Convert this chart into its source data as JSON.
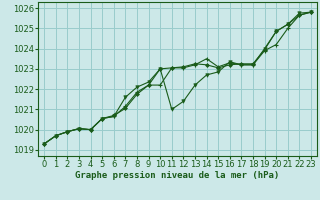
{
  "title": "Graphe pression niveau de la mer (hPa)",
  "xlabel_ticks": [
    0,
    1,
    2,
    3,
    4,
    5,
    6,
    7,
    8,
    9,
    10,
    11,
    12,
    13,
    14,
    15,
    16,
    17,
    18,
    19,
    20,
    21,
    22,
    23
  ],
  "ylim": [
    1018.7,
    1026.3
  ],
  "xlim": [
    -0.5,
    23.5
  ],
  "yticks": [
    1019,
    1020,
    1021,
    1022,
    1023,
    1024,
    1025,
    1026
  ],
  "bg_color": "#cce8e8",
  "grid_color": "#99cccc",
  "line_color": "#1a5c1a",
  "marker_color": "#1a5c1a",
  "series1": [
    1019.3,
    1019.7,
    1019.9,
    1020.05,
    1020.0,
    1020.55,
    1020.7,
    1021.05,
    1021.75,
    1022.2,
    1023.0,
    1023.05,
    1023.1,
    1023.25,
    1023.2,
    1023.05,
    1023.2,
    1023.25,
    1023.25,
    1023.95,
    1024.85,
    1025.2,
    1025.65,
    1025.8
  ],
  "series2": [
    1019.3,
    1019.7,
    1019.9,
    1020.05,
    1020.0,
    1020.55,
    1020.65,
    1021.15,
    1021.85,
    1022.2,
    1022.2,
    1023.05,
    1023.05,
    1023.2,
    1023.5,
    1023.1,
    1023.3,
    1023.2,
    1023.2,
    1023.9,
    1024.2,
    1025.0,
    1025.65,
    1025.8
  ],
  "series3": [
    1019.3,
    1019.7,
    1019.9,
    1020.05,
    1020.0,
    1020.55,
    1020.65,
    1021.6,
    1022.1,
    1022.35,
    1023.0,
    1021.0,
    1021.4,
    1022.2,
    1022.7,
    1022.85,
    1023.35,
    1023.2,
    1023.2,
    1024.0,
    1024.85,
    1025.2,
    1025.75,
    1025.8
  ],
  "label_fontsize": 6.5,
  "tick_fontsize": 6.0,
  "tick_color": "#1a5c1a"
}
